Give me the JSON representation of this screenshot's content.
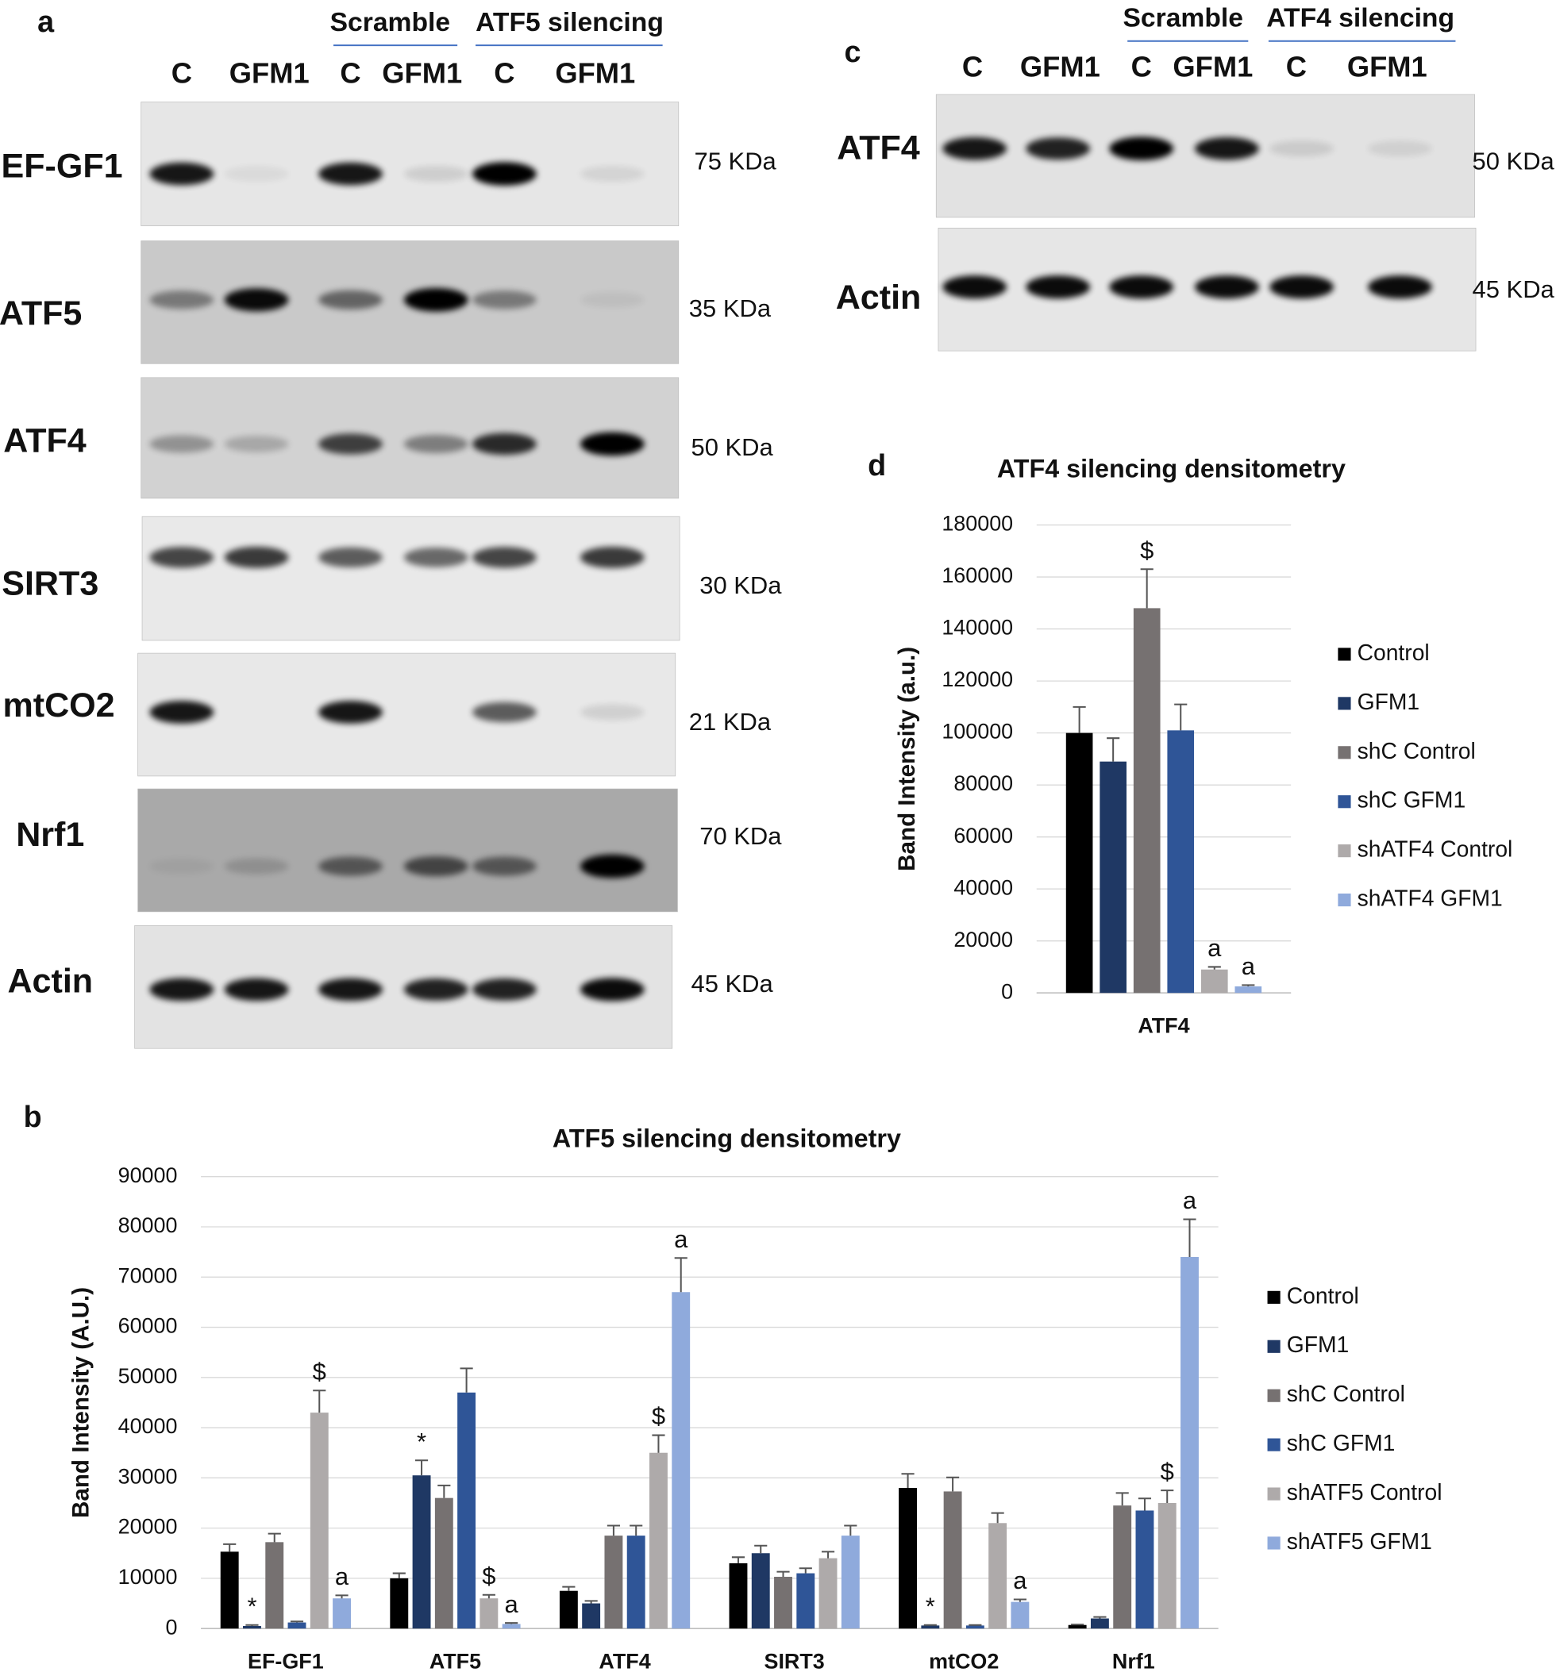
{
  "panel_a": {
    "label": "a",
    "groups": [
      "Scramble",
      "ATF5 silencing"
    ],
    "lanes": [
      "C",
      "GFM1",
      "C",
      "GFM1",
      "C",
      "GFM1"
    ],
    "rows": [
      {
        "protein": "EF-GF1",
        "size": "75 KDa"
      },
      {
        "protein": "ATF5",
        "size": "35 KDa"
      },
      {
        "protein": "ATF4",
        "size": "50 KDa"
      },
      {
        "protein": "SIRT3",
        "size": "30 KDa"
      },
      {
        "protein": "mtCO2",
        "size": "21 KDa"
      },
      {
        "protein": "Nrf1",
        "size": "70 KDa"
      },
      {
        "protein": "Actin",
        "size": "45 KDa"
      }
    ]
  },
  "panel_c": {
    "label": "c",
    "groups": [
      "Scramble",
      "ATF4 silencing"
    ],
    "lanes": [
      "C",
      "GFM1",
      "C",
      "GFM1",
      "C",
      "GFM1"
    ],
    "rows": [
      {
        "protein": "ATF4",
        "size": "50 KDa"
      },
      {
        "protein": "Actin",
        "size": "45 KDa"
      }
    ]
  },
  "chart_data": [
    {
      "type": "bar",
      "panel_label": "b",
      "title": "ATF5 silencing densitometry",
      "y_label": "Band Intensity (A.U.)",
      "categories": [
        "EF-GF1",
        "ATF5",
        "ATF4",
        "SIRT3",
        "mtCO2",
        "Nrf1"
      ],
      "series": [
        {
          "name": "Control",
          "color": "#000000",
          "values": [
            15300,
            10000,
            7500,
            13000,
            28000,
            700
          ],
          "errors": [
            1500,
            1000,
            800,
            1200,
            2800,
            100
          ]
        },
        {
          "name": "GFM1",
          "color": "#1f3864",
          "values": [
            500,
            30500,
            5000,
            15000,
            600,
            2000
          ],
          "errors": [
            200,
            3000,
            500,
            1500,
            100,
            300
          ],
          "annotations": [
            "*",
            "*",
            null,
            null,
            "*",
            null
          ]
        },
        {
          "name": "shC Control",
          "color": "#767171",
          "values": [
            17200,
            26000,
            18500,
            10300,
            27300,
            24500
          ],
          "errors": [
            1700,
            2500,
            2000,
            1000,
            2800,
            2500
          ]
        },
        {
          "name": "shC GFM1",
          "color": "#2f5597",
          "values": [
            1200,
            47000,
            18500,
            11000,
            600,
            23500
          ],
          "errors": [
            200,
            4800,
            2000,
            1000,
            100,
            2400
          ]
        },
        {
          "name": "shATF5 Control",
          "color": "#aeaaaa",
          "values": [
            43000,
            6000,
            35000,
            14000,
            21000,
            25000
          ],
          "errors": [
            4400,
            700,
            3500,
            1300,
            2000,
            2500
          ],
          "annotations": [
            "$",
            "$",
            "$",
            null,
            null,
            "$"
          ]
        },
        {
          "name": "shATF5 GFM1",
          "color": "#8faadc",
          "values": [
            6000,
            900,
            67000,
            18500,
            5300,
            74000
          ],
          "errors": [
            600,
            200,
            6800,
            2000,
            500,
            7500
          ],
          "annotations": [
            "a",
            "a",
            "a",
            null,
            "a",
            "a"
          ]
        }
      ],
      "ylim": [
        0,
        90000
      ],
      "yticks": [
        0,
        10000,
        20000,
        30000,
        40000,
        50000,
        60000,
        70000,
        80000,
        90000
      ],
      "grid": true,
      "legend": "right"
    },
    {
      "type": "bar",
      "panel_label": "d",
      "title": "ATF4 silencing densitometry",
      "y_label": "Band Intensity (a.u.)",
      "categories": [
        "ATF4"
      ],
      "series": [
        {
          "name": "Control",
          "color": "#000000",
          "values": [
            100000
          ],
          "errors": [
            10000
          ]
        },
        {
          "name": "GFM1",
          "color": "#1f3864",
          "values": [
            89000
          ],
          "errors": [
            9000
          ]
        },
        {
          "name": "shC Control",
          "color": "#767171",
          "values": [
            148000
          ],
          "errors": [
            15000
          ],
          "annotations": [
            "$"
          ]
        },
        {
          "name": "shC GFM1",
          "color": "#2f5597",
          "values": [
            101000
          ],
          "errors": [
            10000
          ]
        },
        {
          "name": "shATF4 Control",
          "color": "#aeaaaa",
          "values": [
            9000
          ],
          "errors": [
            1000
          ],
          "annotations": [
            "a"
          ]
        },
        {
          "name": "shATF4 GFM1",
          "color": "#8faadc",
          "values": [
            2500
          ],
          "errors": [
            500
          ],
          "annotations": [
            "a"
          ]
        }
      ],
      "ylim": [
        0,
        180000
      ],
      "yticks": [
        0,
        20000,
        40000,
        60000,
        80000,
        100000,
        120000,
        140000,
        160000,
        180000
      ],
      "grid": true,
      "legend": "right"
    }
  ]
}
